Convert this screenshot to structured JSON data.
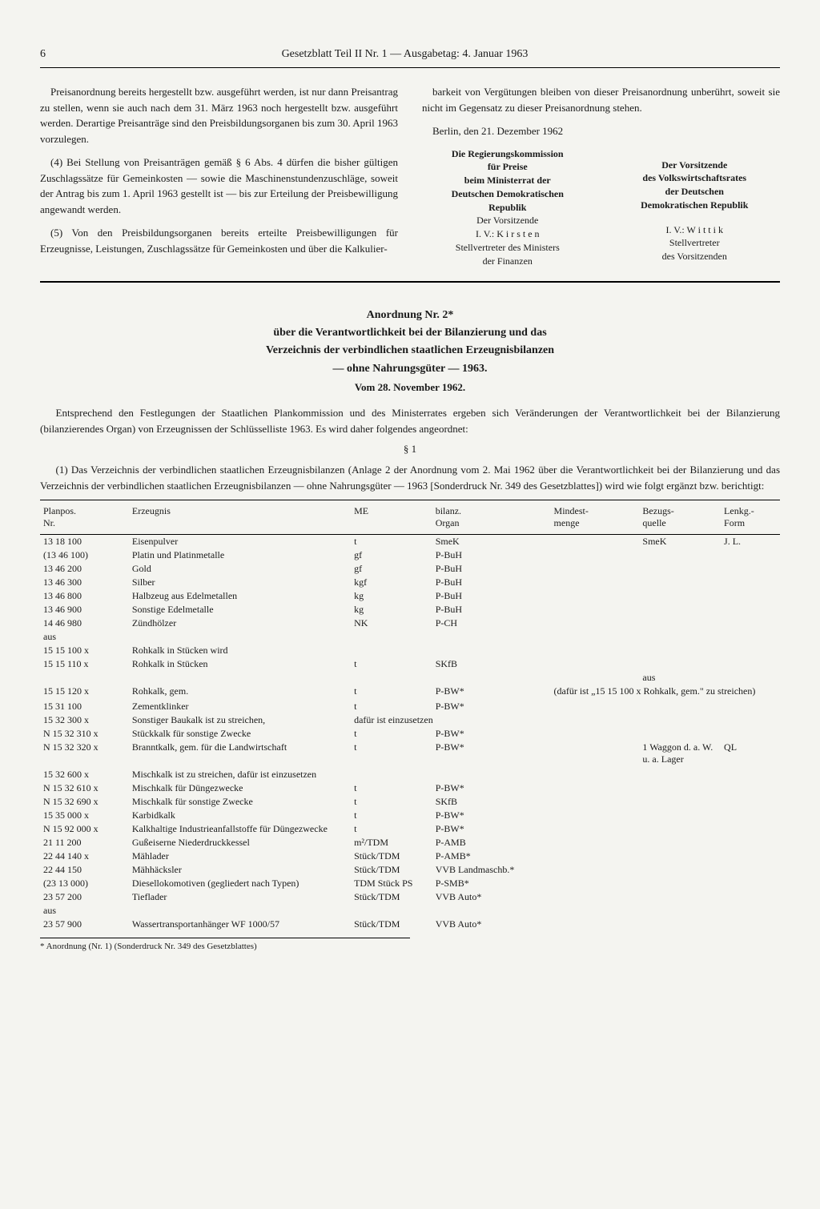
{
  "header": {
    "page_num": "6",
    "title": "Gesetzblatt Teil II Nr. 1 — Ausgabetag: 4. Januar 1963"
  },
  "left_col": {
    "p1": "Preisanordnung bereits hergestellt bzw. ausgeführt werden, ist nur dann Preisantrag zu stellen, wenn sie auch nach dem 31. März 1963 noch hergestellt bzw. ausgeführt werden. Derartige Preisanträge sind den Preisbildungsorganen bis zum 30. April 1963 vorzulegen.",
    "p2": "(4) Bei Stellung von Preisanträgen gemäß § 6 Abs. 4 dürfen die bisher gültigen Zuschlagssätze für Gemeinkosten — sowie die Maschinenstundenzuschläge, soweit der Antrag bis zum 1. April 1963 gestellt ist — bis zur Erteilung der Preisbewilligung angewandt werden.",
    "p3": "(5) Von den Preisbildungsorganen bereits erteilte Preisbewilligungen für Erzeugnisse, Leistungen, Zuschlagssätze für Gemeinkosten und über die Kalkulier-"
  },
  "right_col": {
    "p1": "barkeit von Vergütungen bleiben von dieser Preisanordnung unberührt, soweit sie nicht im Gegensatz zu dieser Preisanordnung stehen.",
    "date": "Berlin, den 21. Dezember 1962",
    "sig_left": {
      "l1": "Die Regierungskommission",
      "l2": "für Preise",
      "l3": "beim Ministerrat der",
      "l4": "Deutschen Demokratischen",
      "l5": "Republik",
      "l6": "Der Vorsitzende",
      "l7": "I. V.: K i r s t e n",
      "l8": "Stellvertreter des Ministers",
      "l9": "der Finanzen"
    },
    "sig_right": {
      "l1": "Der Vorsitzende",
      "l2": "des Volkswirtschaftsrates",
      "l3": "der Deutschen",
      "l4": "Demokratischen Republik",
      "l5": "I. V.: W i t t i k",
      "l6": "Stellvertreter",
      "l7": "des Vorsitzenden"
    }
  },
  "anordnung": {
    "title": "Anordnung Nr. 2*",
    "sub1": "über die Verantwortlichkeit bei der Bilanzierung und das",
    "sub2": "Verzeichnis der verbindlichen staatlichen Erzeugnisbilanzen",
    "sub3": "— ohne Nahrungsgüter — 1963.",
    "date": "Vom 28. November 1962.",
    "intro": "Entsprechend den Festlegungen der Staatlichen Plankommission und des Ministerrates ergeben sich Veränderungen der Verantwortlichkeit bei der Bilanzierung (bilanzierendes Organ) von Erzeugnissen der Schlüsselliste 1963. Es wird daher folgendes angeordnet:",
    "para": "§ 1",
    "para_text": "(1) Das Verzeichnis der verbindlichen staatlichen Erzeugnisbilanzen (Anlage 2 der Anordnung vom 2. Mai 1962 über die Verantwortlichkeit bei der Bilanzierung und das Verzeichnis der verbindlichen staatlichen Erzeugnisbilanzen — ohne Nahrungsgüter — 1963 [Sonderdruck Nr. 349 des Gesetzblattes]) wird wie folgt ergänzt bzw. berichtigt:"
  },
  "table": {
    "headers": {
      "c1": "Planpos.\nNr.",
      "c2": "Erzeugnis",
      "c3": "ME",
      "c4": "bilanz.\nOrgan",
      "c5": "Mindest-\nmenge",
      "c6": "Bezugs-\nquelle",
      "c7": "Lenkg.-\nForm"
    },
    "rows": [
      {
        "c1": "13 18 100",
        "c2": "Eisenpulver",
        "c3": "t",
        "c4": "SmeK",
        "c5": "",
        "c6": "SmeK",
        "c7": "J. L."
      },
      {
        "c1": "(13 46 100)",
        "c2": "Platin und Platinmetalle",
        "c3": "gf",
        "c4": "P-BuH",
        "c5": "",
        "c6": "",
        "c7": ""
      },
      {
        "c1": "13 46 200",
        "c2": "Gold",
        "c3": "gf",
        "c4": "P-BuH",
        "c5": "",
        "c6": "",
        "c7": ""
      },
      {
        "c1": "13 46 300",
        "c2": "Silber",
        "c3": "kgf",
        "c4": "P-BuH",
        "c5": "",
        "c6": "",
        "c7": ""
      },
      {
        "c1": "13 46 800",
        "c2": "Halbzeug aus Edelmetallen",
        "c3": "kg",
        "c4": "P-BuH",
        "c5": "",
        "c6": "",
        "c7": ""
      },
      {
        "c1": "13 46 900",
        "c2": "Sonstige Edelmetalle",
        "c3": "kg",
        "c4": "P-BuH",
        "c5": "",
        "c6": "",
        "c7": ""
      },
      {
        "c1": "14 46 980",
        "c2": "Zündhölzer",
        "c3": "NK",
        "c4": "P-CH",
        "c5": "",
        "c6": "",
        "c7": ""
      },
      {
        "c1": "aus",
        "c2": "",
        "c3": "",
        "c4": "",
        "c5": "",
        "c6": "",
        "c7": ""
      },
      {
        "c1": "15 15 100 x",
        "c2": "Rohkalk in Stücken        wird",
        "c3": "",
        "c4": "",
        "c5": "",
        "c6": "",
        "c7": ""
      },
      {
        "c1": "15 15 110 x",
        "c2": "Rohkalk in Stücken",
        "c3": "t",
        "c4": "SKfB",
        "c5": "",
        "c6": "",
        "c7": ""
      },
      {
        "c1": "",
        "c2": "",
        "c3": "",
        "c4": "",
        "c5": "",
        "c6": "aus",
        "c7": ""
      },
      {
        "c1": "15 15 120 x",
        "c2": "Rohkalk, gem.",
        "c3": "t",
        "c4": "P-BW*",
        "c5": "(dafür ist „15 15 100 x Rohkalk, gem.\" zu streichen)",
        "c6": "",
        "c7": "",
        "colspan5": true
      },
      {
        "c1": "",
        "c2": "",
        "c3": "",
        "c4": "",
        "c5": "",
        "c6": "",
        "c7": ""
      },
      {
        "c1": "15 31 100",
        "c2": "Zementklinker",
        "c3": "t",
        "c4": "P-BW*",
        "c5": "",
        "c6": "",
        "c7": ""
      },
      {
        "c1": "15 32 300 x",
        "c2": "Sonstiger Baukalk ist zu streichen,",
        "c3": "dafür ist einzusetzen",
        "c4": "",
        "c5": "",
        "c6": "",
        "c7": "",
        "colspan3": true
      },
      {
        "c1": "N 15 32 310 x",
        "c2": "Stückkalk für sonstige Zwecke",
        "c3": "t",
        "c4": "P-BW*",
        "c5": "",
        "c6": "",
        "c7": ""
      },
      {
        "c1": "N 15 32 320 x",
        "c2": "Branntkalk, gem. für die Landwirtschaft",
        "c3": "t",
        "c4": "P-BW*",
        "c5": "",
        "c6": "1 Waggon d. a. W. u. a. Lager",
        "c7": "QL"
      },
      {
        "c1": "",
        "c2": "",
        "c3": "",
        "c4": "",
        "c5": "",
        "c6": "",
        "c7": ""
      },
      {
        "c1": "15 32 600 x",
        "c2": "Mischkalk ist zu streichen, dafür ist einzusetzen",
        "c3": "",
        "c4": "",
        "c5": "",
        "c6": "",
        "c7": "",
        "colspan2": true
      },
      {
        "c1": "N 15 32 610 x",
        "c2": "Mischkalk für Düngezwecke",
        "c3": "t",
        "c4": "P-BW*",
        "c5": "",
        "c6": "",
        "c7": ""
      },
      {
        "c1": "N 15 32 690 x",
        "c2": "Mischkalk für sonstige Zwecke",
        "c3": "t",
        "c4": "SKfB",
        "c5": "",
        "c6": "",
        "c7": ""
      },
      {
        "c1": "15 35 000 x",
        "c2": "Karbidkalk",
        "c3": "t",
        "c4": "P-BW*",
        "c5": "",
        "c6": "",
        "c7": ""
      },
      {
        "c1": "N 15 92 000 x",
        "c2": "Kalkhaltige Industrieanfallstoffe für Düngezwecke",
        "c3": "t",
        "c4": "P-BW*",
        "c5": "",
        "c6": "",
        "c7": ""
      },
      {
        "c1": "21 11 200",
        "c2": "Gußeiserne Niederdruckkessel",
        "c3": "m²/TDM",
        "c4": "P-AMB",
        "c5": "",
        "c6": "",
        "c7": ""
      },
      {
        "c1": "22 44 140 x",
        "c2": "Mählader",
        "c3": "Stück/TDM",
        "c4": "P-AMB*",
        "c5": "",
        "c6": "",
        "c7": ""
      },
      {
        "c1": "22 44 150",
        "c2": "Mähhäcksler",
        "c3": "Stück/TDM",
        "c4": "VVB Landmaschb.*",
        "c5": "",
        "c6": "",
        "c7": ""
      },
      {
        "c1": "(23 13 000)",
        "c2": "Diesellokomotiven (gegliedert nach Typen)",
        "c3": "TDM Stück PS",
        "c4": "P-SMB*",
        "c5": "",
        "c6": "",
        "c7": ""
      },
      {
        "c1": "23 57 200",
        "c2": "Tieflader",
        "c3": "Stück/TDM",
        "c4": "VVB Auto*",
        "c5": "",
        "c6": "",
        "c7": ""
      },
      {
        "c1": "aus",
        "c2": "",
        "c3": "",
        "c4": "",
        "c5": "",
        "c6": "",
        "c7": ""
      },
      {
        "c1": "23 57 900",
        "c2": "Wassertransportanhänger WF 1000/57",
        "c3": "Stück/TDM",
        "c4": "VVB Auto*",
        "c5": "",
        "c6": "",
        "c7": ""
      }
    ]
  },
  "footnote": "* Anordnung (Nr. 1) (Sonderdruck Nr. 349 des Gesetzblattes)"
}
